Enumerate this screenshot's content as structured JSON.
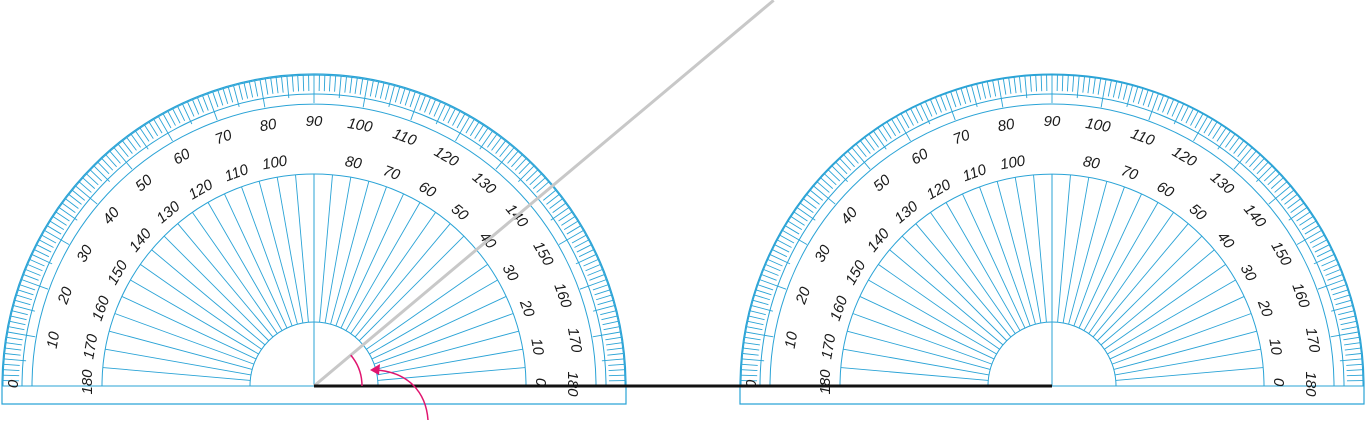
{
  "protractors": [
    {
      "id": "left",
      "outer_labels": [
        "0",
        "10",
        "20",
        "30",
        "40",
        "50",
        "60",
        "70",
        "80",
        "90",
        "100",
        "110",
        "120",
        "130",
        "140",
        "150",
        "160",
        "170",
        "180"
      ],
      "inner_labels": [
        "180",
        "170",
        "160",
        "150",
        "140",
        "130",
        "120",
        "110",
        "100",
        "80",
        "70",
        "60",
        "50",
        "40",
        "30",
        "20",
        "10",
        "0"
      ],
      "ray_angle_deg": 40
    },
    {
      "id": "right",
      "outer_labels": [
        "0",
        "10",
        "20",
        "30",
        "40",
        "50",
        "60",
        "70",
        "80",
        "90",
        "100",
        "110",
        "120",
        "130",
        "140",
        "150",
        "160",
        "170",
        "180"
      ],
      "inner_labels": [
        "180",
        "170",
        "160",
        "150",
        "140",
        "130",
        "120",
        "110",
        "100",
        "80",
        "70",
        "60",
        "50",
        "40",
        "30",
        "20",
        "10",
        "0"
      ]
    }
  ],
  "colors": {
    "protractor": "#2aa3d6",
    "ray": "#c8c8c8",
    "baseline": "#111111",
    "arc_marker": "#e0156f"
  }
}
